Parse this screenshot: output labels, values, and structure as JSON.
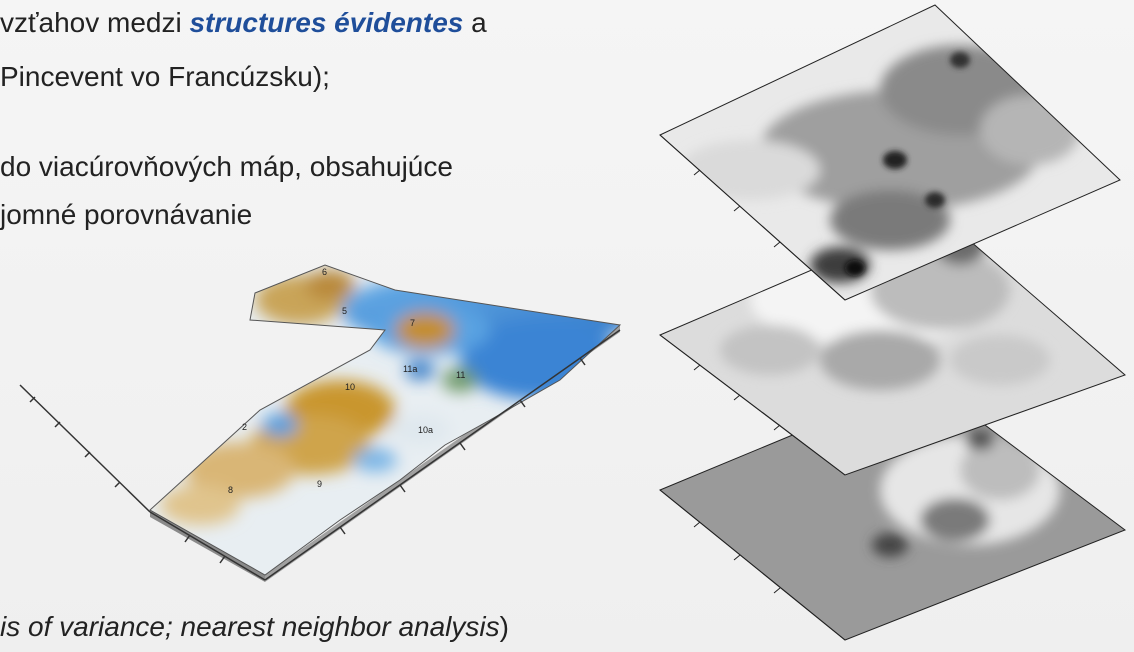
{
  "slide": {
    "line1_a": "vzťahov medzi ",
    "line1_em": "structures évidentes",
    "line1_b": " a",
    "line2": "Pincevent vo Francúzsku);",
    "line3": "do viacúrovňových máp, obsahujúce",
    "line4": "jomné porovnávanie",
    "line5_it": "is of variance; nearest neighbor analysis",
    "line5_end": ")"
  },
  "colored_map": {
    "labels": [
      "6",
      "5",
      "7",
      "10",
      "11a",
      "11",
      "2",
      "10a",
      "8",
      "9"
    ]
  },
  "colors": {
    "accent_text": "#1f4e9a",
    "sand": "#c69a3b",
    "blue": "#3d8ed8",
    "gray_dark": "#3a3a3a",
    "gray_light": "#d8d8d8"
  }
}
